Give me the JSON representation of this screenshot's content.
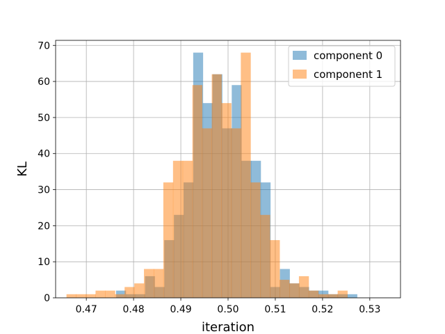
{
  "chart_data": {
    "type": "bar",
    "title": "",
    "xlabel": "iteration",
    "ylabel": "KL",
    "xlim": [
      0.4635,
      0.5365
    ],
    "ylim": [
      0,
      71.4
    ],
    "xticks": [
      "0.47",
      "0.48",
      "0.49",
      "0.50",
      "0.51",
      "0.52",
      "0.53"
    ],
    "xtick_values": [
      0.47,
      0.48,
      0.49,
      0.5,
      0.51,
      0.52,
      0.53
    ],
    "yticks": [
      "0",
      "10",
      "20",
      "30",
      "40",
      "50",
      "60",
      "70"
    ],
    "ytick_values": [
      0,
      10,
      20,
      30,
      40,
      50,
      60,
      70
    ],
    "grid": true,
    "legend_position": "top-right",
    "series": [
      {
        "name": "component 0",
        "color": "#1f77b4",
        "opacity": 0.5,
        "bin_start": 0.4763,
        "bin_width": 0.00204,
        "values": [
          2,
          1,
          1,
          6,
          3,
          16,
          23,
          32,
          68,
          54,
          62,
          47,
          59,
          38,
          38,
          32,
          3,
          8,
          4,
          3,
          2,
          2,
          1,
          1,
          1
        ]
      },
      {
        "name": "component 1",
        "color": "#ff7f0e",
        "opacity": 0.5,
        "bin_start": 0.4658,
        "bin_width": 0.00205,
        "values": [
          1,
          1,
          1,
          2,
          2,
          1,
          3,
          4,
          8,
          8,
          32,
          38,
          38,
          59,
          47,
          62,
          54,
          47,
          68,
          32,
          23,
          16,
          5,
          4,
          6,
          2,
          1,
          1,
          2
        ]
      }
    ]
  }
}
